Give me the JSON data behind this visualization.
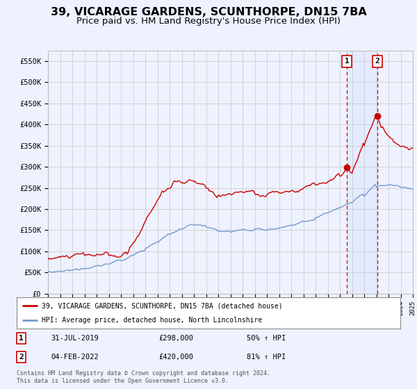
{
  "title": "39, VICARAGE GARDENS, SCUNTHORPE, DN15 7BA",
  "subtitle": "Price paid vs. HM Land Registry's House Price Index (HPI)",
  "title_fontsize": 11.5,
  "subtitle_fontsize": 9.5,
  "ylim": [
    0,
    575000
  ],
  "yticks": [
    0,
    50000,
    100000,
    150000,
    200000,
    250000,
    300000,
    350000,
    400000,
    450000,
    500000,
    550000
  ],
  "ytick_labels": [
    "£0",
    "£50K",
    "£100K",
    "£150K",
    "£200K",
    "£250K",
    "£300K",
    "£350K",
    "£400K",
    "£450K",
    "£500K",
    "£550K"
  ],
  "background_color": "#eef2ff",
  "plot_bg_color": "#eef2ff",
  "grid_color": "#cccccc",
  "red_color": "#cc0000",
  "blue_color": "#7799cc",
  "point1_x": 2019.58,
  "point1_y": 298000,
  "point1_label": "1",
  "point1_date": "31-JUL-2019",
  "point1_price": "£298,000",
  "point1_hpi": "50% ↑ HPI",
  "point2_x": 2022.09,
  "point2_y": 420000,
  "point2_label": "2",
  "point2_date": "04-FEB-2022",
  "point2_price": "£420,000",
  "point2_hpi": "81% ↑ HPI",
  "legend_line1": "39, VICARAGE GARDENS, SCUNTHORPE, DN15 7BA (detached house)",
  "legend_line2": "HPI: Average price, detached house, North Lincolnshire",
  "copyright": "Contains HM Land Registry data © Crown copyright and database right 2024.\nThis data is licensed under the Open Government Licence v3.0.",
  "xmin": 1995,
  "xmax": 2025,
  "vline1_x": 2019.58,
  "vline2_x": 2022.09,
  "shade_alpha": 0.12
}
